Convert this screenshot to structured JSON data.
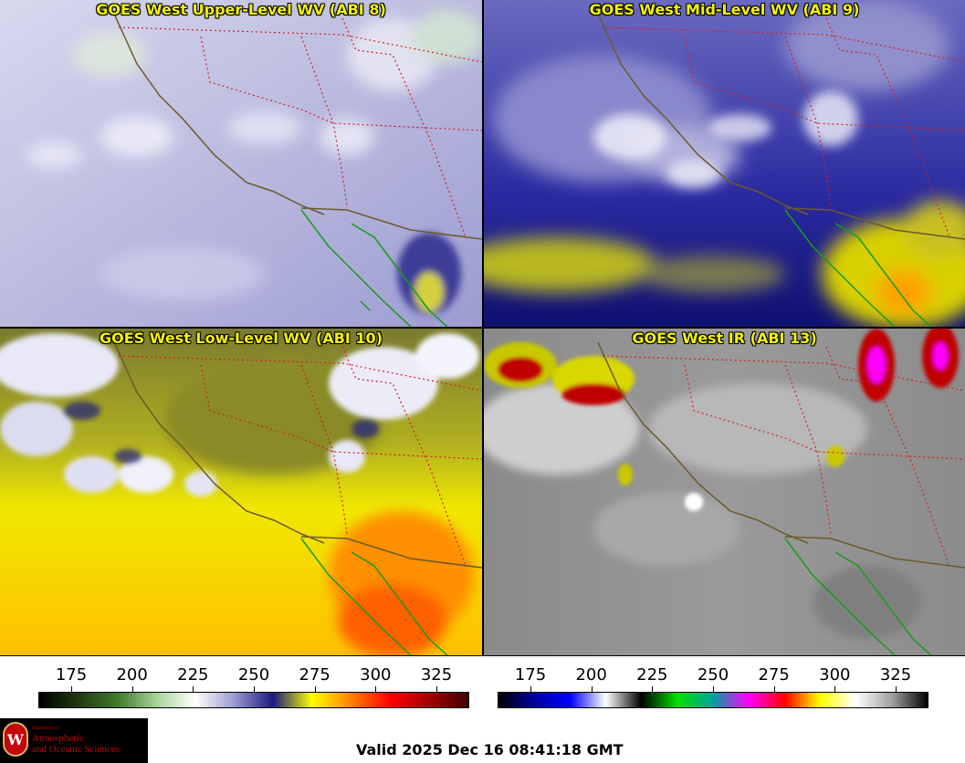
{
  "panels": [
    {
      "title": "GOES West Upper-Level WV (ABI 8)"
    },
    {
      "title": "GOES West Mid-Level WV (ABI 9)"
    },
    {
      "title": "GOES West Low-Level WV (ABI 10)"
    },
    {
      "title": "GOES West IR (ABI 13)"
    }
  ],
  "colorbar_left": {
    "ticks": [
      "175",
      "200",
      "225",
      "250",
      "275",
      "300",
      "325"
    ],
    "colors": [
      "#000000",
      "#1f3a10",
      "#3f7a2a",
      "#a8d29a",
      "#ffffff",
      "#9898d0",
      "#1a1a80",
      "#ffff00",
      "#ff8000",
      "#ff0000",
      "#a00000",
      "#400000"
    ]
  },
  "colorbar_right": {
    "ticks": [
      "175",
      "200",
      "225",
      "250",
      "275",
      "300",
      "325"
    ],
    "colors": [
      "#000000",
      "#0000a0",
      "#0000ff",
      "#ffffff",
      "#000000",
      "#00e000",
      "#00a0a0",
      "#ff00ff",
      "#ff0000",
      "#ffff00",
      "#ffffff",
      "#a0a0a0",
      "#000000"
    ]
  },
  "logo": {
    "seal": "W",
    "dept": "Department of",
    "line1": "Atmospheric",
    "line2": "and Oceanic Sciences"
  },
  "valid_text": "Valid 2025 Dec 16 08:41:18 GMT"
}
